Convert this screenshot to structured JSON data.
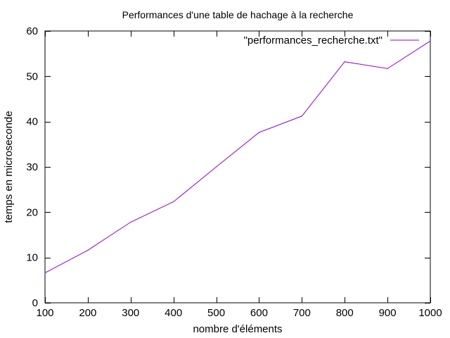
{
  "chart_data": {
    "type": "line",
    "title": "Performances d'une table de hachage à la recherche",
    "xlabel": "nombre d'éléments",
    "ylabel": "temps en microseconde",
    "xlim": [
      100,
      1000
    ],
    "ylim": [
      0,
      60
    ],
    "xticks": [
      100,
      200,
      300,
      400,
      500,
      600,
      700,
      800,
      900,
      1000
    ],
    "yticks": [
      0,
      10,
      20,
      30,
      40,
      50,
      60
    ],
    "grid": false,
    "legend_position": "top-right",
    "series": [
      {
        "name": "\"performances_recherche.txt\"",
        "color": "#9400d3",
        "x": [
          100,
          200,
          300,
          400,
          500,
          600,
          700,
          800,
          900,
          1000
        ],
        "y": [
          6.6,
          11.6,
          17.8,
          22.3,
          30.0,
          37.6,
          41.2,
          53.2,
          51.7,
          57.8
        ]
      }
    ]
  }
}
